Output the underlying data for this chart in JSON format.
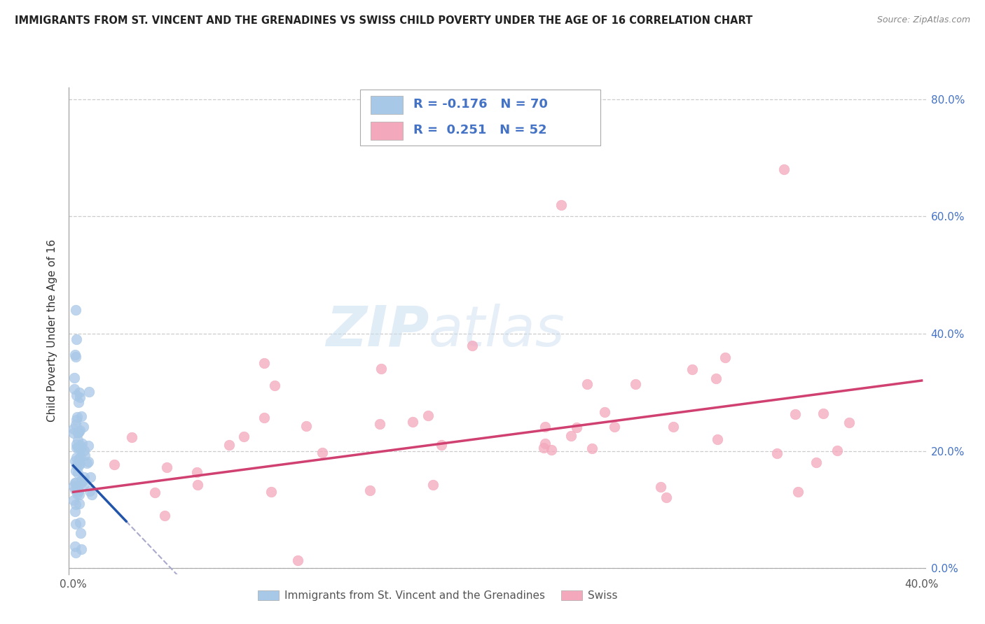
{
  "title": "IMMIGRANTS FROM ST. VINCENT AND THE GRENADINES VS SWISS CHILD POVERTY UNDER THE AGE OF 16 CORRELATION CHART",
  "source": "Source: ZipAtlas.com",
  "ylabel": "Child Poverty Under the Age of 16",
  "legend_label_blue": "Immigrants from St. Vincent and the Grenadines",
  "legend_label_pink": "Swiss",
  "R_blue": -0.176,
  "N_blue": 70,
  "R_pink": 0.251,
  "N_pink": 52,
  "xlim": [
    -0.002,
    0.402
  ],
  "ylim": [
    -0.01,
    0.82
  ],
  "yticks": [
    0.0,
    0.2,
    0.4,
    0.6,
    0.8
  ],
  "color_blue": "#A8C8E8",
  "color_pink": "#F4A8BC",
  "trendline_blue": "#2255AA",
  "trendline_pink": "#D04070",
  "watermark_zip": "ZIP",
  "watermark_atlas": "atlas",
  "background_color": "#ffffff",
  "grid_color": "#cccccc",
  "legend_text_color": "#4472C4",
  "axis_label_color": "#4472C4"
}
